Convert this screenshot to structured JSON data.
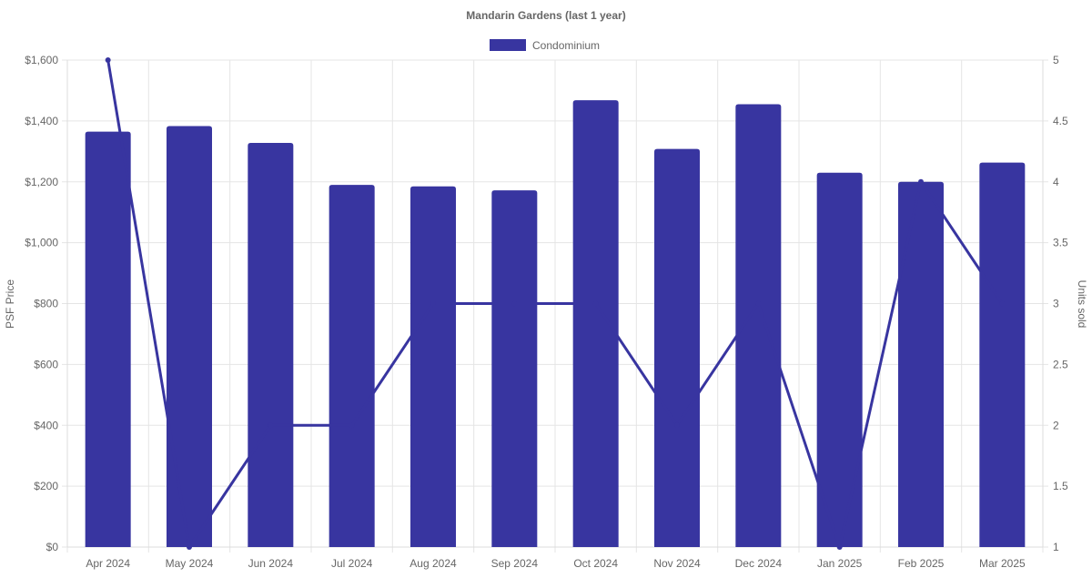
{
  "chart_data": {
    "type": "bar+line",
    "title": "Mandarin Gardens (last 1 year)",
    "categories": [
      "Apr 2024",
      "May 2024",
      "Jun 2024",
      "Jul 2024",
      "Aug 2024",
      "Sep 2024",
      "Oct 2024",
      "Nov 2024",
      "Dec 2024",
      "Jan 2025",
      "Feb 2025",
      "Mar 2025"
    ],
    "series": [
      {
        "name": "Condominium",
        "type": "bar",
        "axis": "left",
        "values": [
          1365,
          1383,
          1328,
          1190,
          1185,
          1172,
          1468,
          1308,
          1455,
          1230,
          1200,
          1263
        ]
      },
      {
        "type": "line",
        "axis": "right",
        "values": [
          5,
          1,
          2,
          2,
          3,
          3,
          3,
          2,
          3,
          1,
          4,
          3
        ]
      }
    ],
    "ylabel": "PSF Price",
    "y2label": "Units sold",
    "ylim": [
      0,
      1600
    ],
    "y2lim": [
      1,
      5
    ],
    "yticks": [
      "$0",
      "$200",
      "$400",
      "$600",
      "$800",
      "$1,000",
      "$1,200",
      "$1,400",
      "$1,600"
    ],
    "y2ticks": [
      "1",
      "1.5",
      "2",
      "2.5",
      "3",
      "3.5",
      "4",
      "4.5",
      "5"
    ],
    "legend_position": "top",
    "grid": true,
    "color": "#3835a0"
  }
}
